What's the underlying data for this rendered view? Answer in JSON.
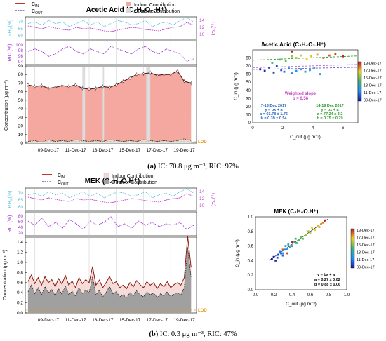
{
  "colors": {
    "cin": "#c0392b",
    "cout": "#5b3f9e",
    "rh": "#5bc0de",
    "t": "#c040d0",
    "rio": "#9b30d0",
    "indoor": "#f4a8a0",
    "outdoor_a": "#e0e0e0",
    "outdoor_b": "#a0a0a0",
    "lod": "#e69a1e",
    "gap": "#dcdcdc",
    "fit_7_13": "#6a5acd",
    "fit_14_19": "#2aa02a",
    "fit_weighted": "#b060d0",
    "stats_7_13": "#2060c0",
    "stats_14_19": "#2a9a2a",
    "stats_weighted": "#c040c0"
  },
  "panel_a": {
    "caption_prefix": "(a)",
    "caption_rest": " IC: 70.8 μg m⁻³, RIC: 97%",
    "ts": {
      "title": "Acetic Acid (C₂H₄O₂.H⁺)",
      "legend": {
        "cin": "C",
        "cin_sub": "IN",
        "cout": "C",
        "cout_sub": "OUT",
        "indoor": "Indoor Contribution",
        "outdoor": "Outdoor Contribution"
      },
      "rh_label": "RH",
      "rh_sub": "in",
      "rh_unit": "(%)",
      "rh_ticks": [
        "70",
        "65",
        "60"
      ],
      "t_label": "T",
      "t_sub": "in",
      "t_unit": "(°C)",
      "t_ticks": [
        "14",
        "12",
        "10"
      ],
      "ric_label": "RIC (%)",
      "ric_ticks": [
        "100",
        "98",
        "96",
        "94"
      ],
      "conc_label": "Concentration (μg m⁻³)",
      "conc_ticks": [
        "90",
        "80",
        "70",
        "60",
        "50",
        "40",
        "30",
        "20",
        "10",
        "0"
      ],
      "date_labels": [
        "09-Dec-17",
        "11-Dec-17",
        "13-Dec-17",
        "15-Dec-17",
        "17-Dec-17",
        "19-Dec-17"
      ],
      "lod": "LOD"
    },
    "scatter": {
      "title": "Acetic Acid (C₂H₄O₂.H⁺)",
      "ylabel": "C_in (μg m⁻³)",
      "xlabel": "C_out (μg m⁻³)",
      "x_ticks": [
        "0",
        "2",
        "4",
        "6"
      ],
      "y_ticks": [
        "80",
        "70",
        "60",
        "50",
        "40",
        "30",
        "20",
        "10",
        "0"
      ],
      "weighted_title": "Weighted slope",
      "weighted_eq": "b = 0.56",
      "group1_title": "7-13 Dec 2017",
      "group1_eq": "y = bx + a",
      "group1_a": "a = 65.78 ± 1.76",
      "group1_b": "b = 0.39 ± 0.54",
      "group2_title": "14-19 Dec 2017",
      "group2_eq": "y = bx + a",
      "group2_a": "a = 77.24 ± 3.2",
      "group2_b": "b = 0.75 ± 0.79",
      "colorbar": [
        "19-Dec-17",
        "17-Dec-17",
        "15-Dec-17",
        "13-Dec-17",
        "11-Dec-17",
        "09-Dec-17"
      ]
    }
  },
  "panel_b": {
    "caption_prefix": "(b)",
    "caption_rest": " IC: 0.3 μg m⁻³, RIC: 47%",
    "ts": {
      "title": "MEK (C₄H₈O.H⁺)",
      "legend": {
        "cin": "C",
        "cin_sub": "IN",
        "cout": "C",
        "cout_sub": "OUT",
        "indoor": "Indoor Contribution",
        "outdoor": "Outdoor Contribution"
      },
      "rh_label": "RH",
      "rh_sub": "in",
      "rh_unit": "(%)",
      "rh_ticks": [
        "70",
        "65",
        "60"
      ],
      "t_label": "T",
      "t_sub": "in",
      "t_unit": "(°C)",
      "t_ticks": [
        "14",
        "12",
        "10"
      ],
      "ric_label": "RIC (%)",
      "ric_ticks": [
        "80",
        "60",
        "40",
        "20"
      ],
      "conc_label": "Concentration (μg m⁻³)",
      "conc_ticks": [
        "1.4",
        "1.2",
        "1.0",
        "0.8",
        "0.6",
        "0.4",
        "0.2",
        "0.0"
      ],
      "date_labels": [
        "09-Dec-17",
        "11-Dec-17",
        "13-Dec-17",
        "15-Dec-17",
        "17-Dec-17",
        "19-Dec-17"
      ],
      "lod": "LOD"
    },
    "scatter": {
      "title": "MEK (C₄H₈O.H⁺)",
      "ylabel": "C_in (μg m⁻³)",
      "xlabel": "C_out (μg m⁻³)",
      "x_ticks": [
        "0.0",
        "0.2",
        "0.4",
        "0.6",
        "0.8",
        "1.0"
      ],
      "y_ticks": [
        "1.0",
        "0.8",
        "0.6",
        "0.4",
        "0.2",
        "0.0"
      ],
      "fit_eq": "y = bx + a",
      "fit_a": "a = 0.27 ± 0.02",
      "fit_b": "b = 0.88 ± 0.06",
      "colorbar": [
        "19-Dec-17",
        "17-Dec-17",
        "15-Dec-17",
        "13-Dec-17",
        "11-Dec-17",
        "09-Dec-17"
      ]
    }
  },
  "chart_data": [
    {
      "type": "line",
      "name": "acetic-acid-timeseries",
      "title": "Acetic Acid (C₂H₄O₂.H⁺)",
      "ylabel": "Concentration (μg m⁻³)",
      "ylim": [
        0,
        90
      ],
      "x": [
        7.5,
        8.0,
        8.5,
        9.0,
        9.5,
        10.0,
        10.5,
        11.0,
        11.5,
        12.0,
        12.5,
        13.0,
        13.5,
        14.0,
        14.5,
        15.0,
        15.5,
        16.0,
        16.5,
        17.0,
        17.5,
        18.0,
        18.5,
        19.0,
        19.5
      ],
      "x_units": "day of December 2017",
      "series": [
        {
          "name": "C_IN",
          "values": [
            68,
            66,
            67,
            64,
            65,
            67,
            66,
            68,
            64,
            63,
            64,
            66,
            65,
            68,
            72,
            76,
            80,
            81,
            82,
            79,
            80,
            80,
            84,
            72,
            70
          ]
        },
        {
          "name": "C_OUT",
          "values": [
            2,
            3,
            1,
            4,
            2,
            3,
            2,
            4,
            3,
            2,
            3,
            2,
            4,
            3,
            2,
            3,
            2,
            4,
            3,
            2,
            3,
            2,
            3,
            5,
            3
          ]
        }
      ],
      "gaps": [
        [
          11.5,
          11.7
        ],
        [
          13.0,
          13.1
        ],
        [
          16.2,
          16.5
        ]
      ],
      "rh_in": [
        68,
        69,
        67,
        70,
        68,
        69,
        66,
        68,
        70,
        67,
        69,
        66,
        68,
        70,
        69,
        67,
        68,
        70,
        66,
        68,
        69,
        67,
        70,
        72,
        69
      ],
      "t_in": [
        12.6,
        12.2,
        11.8,
        12.4,
        12.0,
        11.6,
        11.4,
        12.2,
        11.8,
        12.0,
        11.6,
        11.2,
        11.0,
        11.4,
        11.8,
        12.2,
        12.0,
        11.6,
        11.4,
        11.2,
        11.8,
        12.2,
        12.4,
        13.6,
        12.8
      ],
      "ric": [
        97,
        98,
        97,
        95,
        96,
        98,
        99,
        97,
        96,
        98,
        97,
        96,
        99,
        98,
        97,
        96,
        98,
        99,
        97,
        96,
        98,
        97,
        96,
        93,
        94
      ]
    },
    {
      "type": "scatter",
      "name": "acetic-acid-scatter",
      "title": "Acetic Acid (C₂H₄O₂.H⁺)",
      "xlabel": "C_out (μg m⁻³)",
      "ylabel": "C_in (μg m⁻³)",
      "xlim": [
        0,
        7
      ],
      "ylim": [
        0,
        90
      ],
      "points": [
        [
          0.5,
          66,
          9.0
        ],
        [
          0.8,
          64,
          9.3
        ],
        [
          1.1,
          68,
          9.6
        ],
        [
          1.4,
          62,
          9.9
        ],
        [
          1.6,
          70,
          10.2
        ],
        [
          1.9,
          65,
          10.5
        ],
        [
          2.1,
          63,
          10.8
        ],
        [
          2.4,
          67,
          11.1
        ],
        [
          2.6,
          61,
          11.4
        ],
        [
          2.9,
          64,
          11.7
        ],
        [
          3.2,
          66,
          12.0
        ],
        [
          3.5,
          63,
          12.3
        ],
        [
          3.8,
          65,
          12.6
        ],
        [
          4.1,
          68,
          12.9
        ],
        [
          4.5,
          60,
          12.0
        ],
        [
          1.3,
          74,
          14.0
        ],
        [
          1.8,
          78,
          14.4
        ],
        [
          2.2,
          76,
          14.8
        ],
        [
          2.6,
          82,
          15.2
        ],
        [
          2.9,
          80,
          15.6
        ],
        [
          3.2,
          83,
          16.0
        ],
        [
          3.6,
          79,
          16.4
        ],
        [
          3.9,
          82,
          16.8
        ],
        [
          4.3,
          84,
          17.2
        ],
        [
          4.7,
          80,
          17.6
        ],
        [
          5.1,
          83,
          18.0
        ],
        [
          5.5,
          85,
          18.4
        ],
        [
          6.0,
          82,
          18.8
        ],
        [
          2.6,
          88,
          19.2
        ]
      ],
      "point_fields": [
        "C_out",
        "C_in",
        "day"
      ],
      "fits": [
        {
          "name": "7-13 Dec 2017",
          "a": 65.78,
          "b": 0.39
        },
        {
          "name": "14-19 Dec 2017",
          "a": 77.24,
          "b": 0.75
        },
        {
          "name": "Weighted slope",
          "a": 68.0,
          "b": 0.56
        }
      ]
    },
    {
      "type": "area",
      "name": "mek-timeseries",
      "title": "MEK (C₄H₈O.H⁺)",
      "ylabel": "Concentration (μg m⁻³)",
      "ylim": [
        0,
        1.5
      ],
      "x": [
        7.5,
        7.75,
        8.0,
        8.25,
        8.5,
        8.75,
        9.0,
        9.25,
        9.5,
        9.75,
        10.0,
        10.25,
        10.5,
        10.75,
        11.0,
        11.25,
        11.5,
        11.75,
        12.0,
        12.25,
        12.5,
        12.75,
        13.0,
        13.25,
        13.5,
        13.75,
        14.0,
        14.25,
        14.5,
        14.75,
        15.0,
        15.25,
        15.5,
        15.75,
        16.0,
        16.25,
        16.5,
        16.75,
        17.0,
        17.25,
        17.5,
        17.75,
        18.0,
        18.25,
        18.5,
        18.75,
        19.0,
        19.25,
        19.5
      ],
      "x_units": "day of December 2017",
      "series": [
        {
          "name": "C_IN",
          "values": [
            0.62,
            0.75,
            0.58,
            0.7,
            0.55,
            0.72,
            0.6,
            0.66,
            0.52,
            0.68,
            0.57,
            0.74,
            0.55,
            0.63,
            0.5,
            0.7,
            0.58,
            0.66,
            0.6,
            0.92,
            0.55,
            0.65,
            0.5,
            0.6,
            0.72,
            0.58,
            0.62,
            0.5,
            0.55,
            0.48,
            0.6,
            0.52,
            0.64,
            0.56,
            0.5,
            0.62,
            0.55,
            0.6,
            0.48,
            0.58,
            0.52,
            0.62,
            0.5,
            0.56,
            0.6,
            0.55,
            0.7,
            1.52,
            0.9
          ]
        },
        {
          "name": "C_OUT",
          "values": [
            0.42,
            0.55,
            0.38,
            0.5,
            0.36,
            0.52,
            0.4,
            0.46,
            0.34,
            0.48,
            0.37,
            0.54,
            0.36,
            0.43,
            0.33,
            0.5,
            0.38,
            0.46,
            0.4,
            0.72,
            0.36,
            0.45,
            0.32,
            0.41,
            0.52,
            0.38,
            0.42,
            0.32,
            0.36,
            0.3,
            0.4,
            0.34,
            0.44,
            0.36,
            0.32,
            0.42,
            0.36,
            0.4,
            0.3,
            0.38,
            0.34,
            0.42,
            0.32,
            0.37,
            0.4,
            0.36,
            0.5,
            1.3,
            0.7
          ]
        }
      ],
      "rh_in": [
        68,
        69,
        67,
        70,
        68,
        69,
        66,
        68,
        70,
        67,
        69,
        66,
        68,
        70,
        69,
        67,
        68,
        70,
        66,
        68,
        69,
        67,
        70,
        72,
        69
      ],
      "t_in": [
        12.6,
        12.2,
        11.8,
        12.4,
        12.0,
        11.6,
        11.4,
        12.2,
        11.8,
        12.0,
        11.6,
        11.2,
        11.0,
        11.4,
        11.8,
        12.2,
        12.0,
        11.6,
        11.4,
        11.2,
        11.8,
        12.2,
        12.4,
        13.6,
        12.8
      ],
      "ric": [
        60,
        45,
        70,
        40,
        55,
        35,
        65,
        50,
        30,
        60,
        45,
        55,
        75,
        40,
        50,
        35,
        60,
        45,
        55,
        40,
        50,
        45,
        55,
        30,
        45
      ]
    },
    {
      "type": "scatter",
      "name": "mek-scatter",
      "title": "MEK (C₄H₈O.H⁺)",
      "xlabel": "C_out (μg m⁻³)",
      "ylabel": "C_in (μg m⁻³)",
      "xlim": [
        0,
        1.0
      ],
      "ylim": [
        0,
        1.0
      ],
      "points": [
        [
          0.18,
          0.42,
          9.0
        ],
        [
          0.2,
          0.45,
          9.2
        ],
        [
          0.22,
          0.4,
          9.5
        ],
        [
          0.25,
          0.48,
          9.8
        ],
        [
          0.24,
          0.44,
          10.1
        ],
        [
          0.28,
          0.5,
          10.4
        ],
        [
          0.3,
          0.47,
          10.7
        ],
        [
          0.27,
          0.52,
          11.0
        ],
        [
          0.32,
          0.55,
          11.3
        ],
        [
          0.3,
          0.5,
          11.6
        ],
        [
          0.35,
          0.56,
          11.9
        ],
        [
          0.33,
          0.6,
          12.2
        ],
        [
          0.38,
          0.58,
          12.5
        ],
        [
          0.36,
          0.62,
          12.8
        ],
        [
          0.4,
          0.6,
          13.1
        ],
        [
          0.42,
          0.66,
          13.4
        ],
        [
          0.45,
          0.64,
          13.7
        ],
        [
          0.44,
          0.7,
          14.0
        ],
        [
          0.48,
          0.68,
          14.3
        ],
        [
          0.5,
          0.72,
          14.6
        ],
        [
          0.52,
          0.7,
          14.9
        ],
        [
          0.55,
          0.75,
          15.2
        ],
        [
          0.58,
          0.8,
          15.5
        ],
        [
          0.6,
          0.78,
          15.8
        ],
        [
          0.62,
          0.84,
          16.1
        ],
        [
          0.65,
          0.82,
          16.4
        ],
        [
          0.68,
          0.88,
          16.7
        ],
        [
          0.7,
          0.86,
          17.0
        ],
        [
          0.72,
          0.9,
          17.3
        ],
        [
          0.74,
          0.92,
          17.6
        ],
        [
          0.3,
          0.55,
          18.0
        ],
        [
          0.35,
          0.5,
          18.4
        ],
        [
          0.4,
          0.65,
          18.8
        ],
        [
          0.76,
          0.95,
          19.2
        ]
      ],
      "point_fields": [
        "C_out",
        "C_in",
        "day"
      ],
      "fit": {
        "a": 0.27,
        "b": 0.88
      }
    }
  ]
}
